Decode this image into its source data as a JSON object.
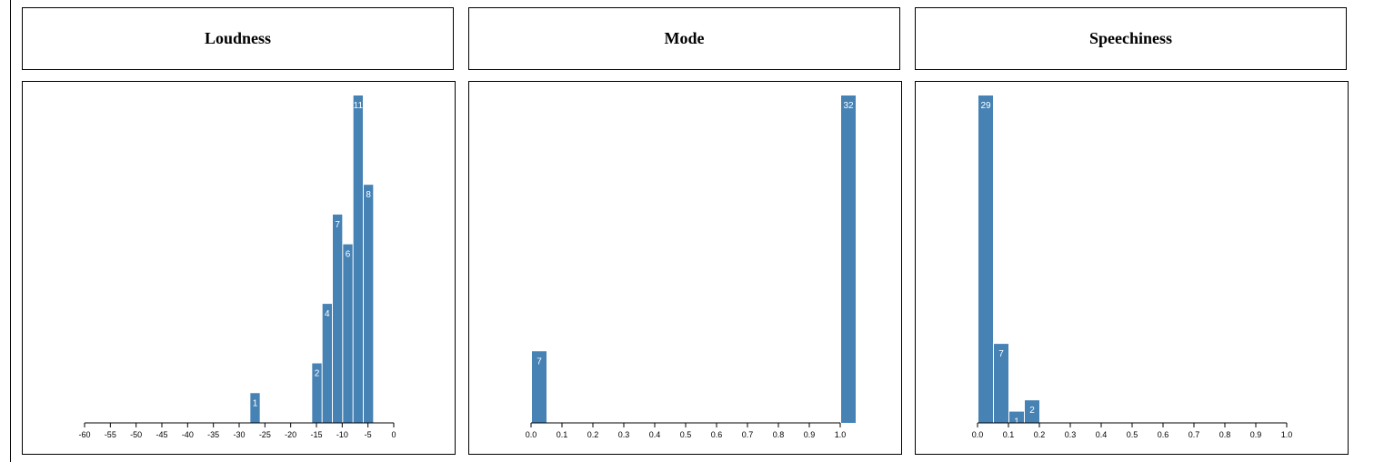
{
  "chart_data": [
    {
      "type": "bar",
      "title": "Loudness",
      "xlim": [
        -60,
        0
      ],
      "ticks": [
        -60,
        -55,
        -50,
        -45,
        -40,
        -35,
        -30,
        -25,
        -20,
        -15,
        -10,
        -5,
        0
      ],
      "tick_labels": [
        "-60",
        "-55",
        "-50",
        "-45",
        "-40",
        "-35",
        "-30",
        "-25",
        "-20",
        "-15",
        "-10",
        "-5",
        "0"
      ],
      "ylim": [
        0,
        11
      ],
      "bins": [
        {
          "x0": -28,
          "x1": -26,
          "value": 1
        },
        {
          "x0": -16,
          "x1": -14,
          "value": 2
        },
        {
          "x0": -14,
          "x1": -12,
          "value": 4
        },
        {
          "x0": -12,
          "x1": -10,
          "value": 7
        },
        {
          "x0": -10,
          "x1": -8,
          "value": 6
        },
        {
          "x0": -8,
          "x1": -6,
          "value": 11
        },
        {
          "x0": -6,
          "x1": -4,
          "value": 8
        }
      ]
    },
    {
      "type": "bar",
      "title": "Mode",
      "xlim": [
        0,
        1.0
      ],
      "ticks": [
        0,
        0.1,
        0.2,
        0.3,
        0.4,
        0.5,
        0.6,
        0.7,
        0.8,
        0.9,
        1.0
      ],
      "tick_labels": [
        "0.0",
        "0.1",
        "0.2",
        "0.3",
        "0.4",
        "0.5",
        "0.6",
        "0.7",
        "0.8",
        "0.9",
        "1.0"
      ],
      "ylim": [
        0,
        32
      ],
      "bins": [
        {
          "x0": 0.0,
          "x1": 0.05,
          "value": 7
        },
        {
          "x0": 1.0,
          "x1": 1.05,
          "value": 32
        }
      ]
    },
    {
      "type": "bar",
      "title": "Speechiness",
      "xlim": [
        0,
        1.0
      ],
      "ticks": [
        0,
        0.1,
        0.2,
        0.3,
        0.4,
        0.5,
        0.6,
        0.7,
        0.8,
        0.9,
        1.0
      ],
      "tick_labels": [
        "0.0",
        "0.1",
        "0.2",
        "0.3",
        "0.4",
        "0.5",
        "0.6",
        "0.7",
        "0.8",
        "0.9",
        "1.0"
      ],
      "ylim": [
        0,
        29
      ],
      "bins": [
        {
          "x0": 0.0,
          "x1": 0.05,
          "value": 29
        },
        {
          "x0": 0.05,
          "x1": 0.1,
          "value": 7
        },
        {
          "x0": 0.1,
          "x1": 0.15,
          "value": 1
        },
        {
          "x0": 0.15,
          "x1": 0.2,
          "value": 2
        }
      ]
    }
  ],
  "colors": {
    "bar": "#4682b4",
    "bar_label": "#ffffff"
  }
}
